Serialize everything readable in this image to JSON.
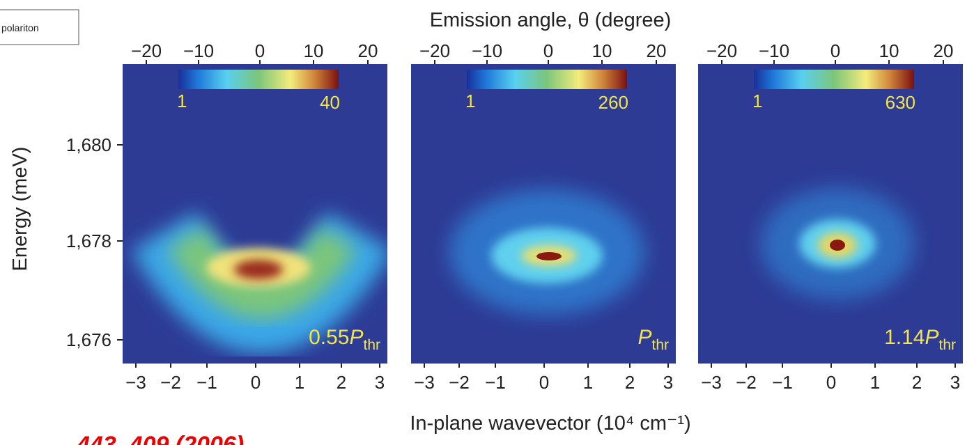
{
  "header_note": "polariton",
  "citation": "443, 409 (2006)",
  "top_axis": {
    "title": "Emission angle, θ (degree)",
    "ticks": [
      "−20",
      "−10",
      "0",
      "10",
      "20"
    ]
  },
  "bottom_axis": {
    "title": "In-plane wavevector (10⁴ cm⁻¹)",
    "ticks": [
      "−3",
      "−2",
      "−1",
      "0",
      "1",
      "2",
      "3"
    ]
  },
  "left_axis": {
    "title": "Energy (meV)",
    "ticks": [
      "1,680",
      "1,678",
      "1,676"
    ]
  },
  "panels": [
    {
      "colorbar": {
        "min": "1",
        "max": "40"
      },
      "label": {
        "prefix": "0.55",
        "symbol": "P",
        "subscript": "thr"
      }
    },
    {
      "colorbar": {
        "min": "1",
        "max": "260"
      },
      "label": {
        "symbol": "P",
        "subscript": "thr"
      }
    },
    {
      "colorbar": {
        "min": "1",
        "max": "630"
      },
      "label": {
        "prefix": "1.14",
        "symbol": "P",
        "subscript": "thr"
      }
    }
  ]
}
